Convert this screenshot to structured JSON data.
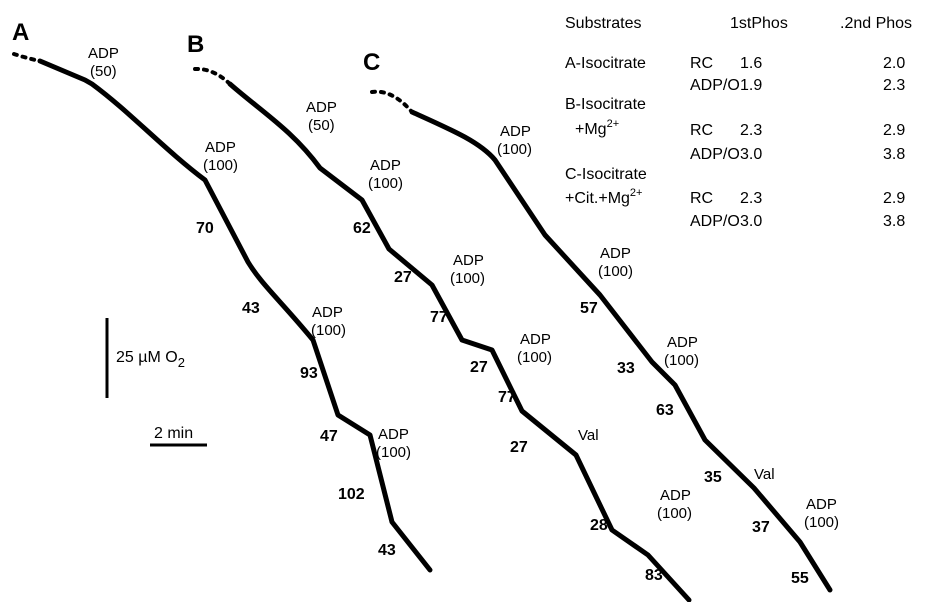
{
  "chart_data": {
    "type": "line",
    "panels": [
      {
        "letter": "A",
        "additions": [
          {
            "label": "ADP",
            "amount": "(50)"
          },
          {
            "label": "ADP",
            "amount": "(100)"
          },
          {
            "label": "ADP",
            "amount": "(100)"
          },
          {
            "label": "ADP",
            "amount": "(100)"
          }
        ],
        "rates": [
          "70",
          "43",
          "93",
          "47",
          "102",
          "43"
        ]
      },
      {
        "letter": "B",
        "additions": [
          {
            "label": "ADP",
            "amount": "(50)"
          },
          {
            "label": "ADP",
            "amount": "(100)"
          },
          {
            "label": "ADP",
            "amount": "(100)"
          },
          {
            "label": "ADP",
            "amount": "(100)"
          },
          {
            "label": "Val",
            "amount": ""
          },
          {
            "label": "ADP",
            "amount": "(100)"
          }
        ],
        "rates": [
          "62",
          "27",
          "77",
          "27",
          "77",
          "27",
          "28",
          "83"
        ]
      },
      {
        "letter": "C",
        "additions": [
          {
            "label": "ADP",
            "amount": "(100)"
          },
          {
            "label": "ADP",
            "amount": "(100)"
          },
          {
            "label": "ADP",
            "amount": "(100)"
          },
          {
            "label": "Val",
            "amount": ""
          },
          {
            "label": "ADP",
            "amount": "(100)"
          }
        ],
        "rates": [
          "57",
          "33",
          "63",
          "35",
          "37",
          "55"
        ]
      }
    ],
    "scale_bars": {
      "oxygen": {
        "prefix": "25 µM O",
        "subscript": "2"
      },
      "time": "2 min"
    },
    "table": {
      "headers": [
        "Substrates",
        "1stPhos",
        ".2nd Phos"
      ],
      "groups": [
        {
          "line1": "A-Isocitrate",
          "line2": "",
          "line2_sup": "",
          "rows": [
            {
              "param": "RC",
              "first": "1.6",
              "second": "2.0"
            },
            {
              "param": "ADP/O",
              "first": "1.9",
              "second": "2.3"
            }
          ]
        },
        {
          "line1": "B-Isocitrate",
          "line2": "+Mg",
          "line2_sup": "2+",
          "rows": [
            {
              "param": "RC",
              "first": "2.3",
              "second": "2.9"
            },
            {
              "param": "ADP/O",
              "first": "3.0",
              "second": "3.8"
            }
          ]
        },
        {
          "line1": "C-Isocitrate",
          "line2": "+Cit.+Mg",
          "line2_sup": "2+",
          "rows": [
            {
              "param": "RC",
              "first": "2.3",
              "second": "2.9"
            },
            {
              "param": "ADP/O",
              "first": "3.0",
              "second": "3.8"
            }
          ]
        }
      ]
    }
  }
}
